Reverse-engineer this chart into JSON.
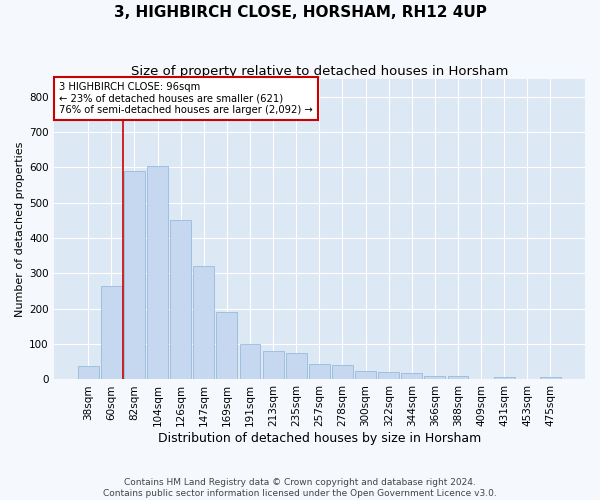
{
  "title": "3, HIGHBIRCH CLOSE, HORSHAM, RH12 4UP",
  "subtitle": "Size of property relative to detached houses in Horsham",
  "xlabel": "Distribution of detached houses by size in Horsham",
  "ylabel": "Number of detached properties",
  "footer_line1": "Contains HM Land Registry data © Crown copyright and database right 2024.",
  "footer_line2": "Contains public sector information licensed under the Open Government Licence v3.0.",
  "categories": [
    "38sqm",
    "60sqm",
    "82sqm",
    "104sqm",
    "126sqm",
    "147sqm",
    "169sqm",
    "191sqm",
    "213sqm",
    "235sqm",
    "257sqm",
    "278sqm",
    "300sqm",
    "322sqm",
    "344sqm",
    "366sqm",
    "388sqm",
    "409sqm",
    "431sqm",
    "453sqm",
    "475sqm"
  ],
  "values": [
    37,
    265,
    590,
    605,
    450,
    320,
    190,
    100,
    80,
    75,
    45,
    40,
    25,
    22,
    18,
    10,
    10,
    2,
    8,
    2,
    8
  ],
  "bar_color": "#c5d8f0",
  "bar_edge_color": "#8ab4d8",
  "annotation_line1": "3 HIGHBIRCH CLOSE: 96sqm",
  "annotation_line2": "← 23% of detached houses are smaller (621)",
  "annotation_line3": "76% of semi-detached houses are larger (2,092) →",
  "annotation_box_color": "#cc0000",
  "vline_color": "#cc0000",
  "ylim": [
    0,
    850
  ],
  "yticks": [
    0,
    100,
    200,
    300,
    400,
    500,
    600,
    700,
    800
  ],
  "fig_bg_color": "#f5f8fc",
  "axes_bg_color": "#dde8f5",
  "grid_color": "#ffffff",
  "title_fontsize": 11,
  "subtitle_fontsize": 9.5,
  "xlabel_fontsize": 9,
  "ylabel_fontsize": 8,
  "tick_fontsize": 7.5,
  "footer_fontsize": 6.5
}
